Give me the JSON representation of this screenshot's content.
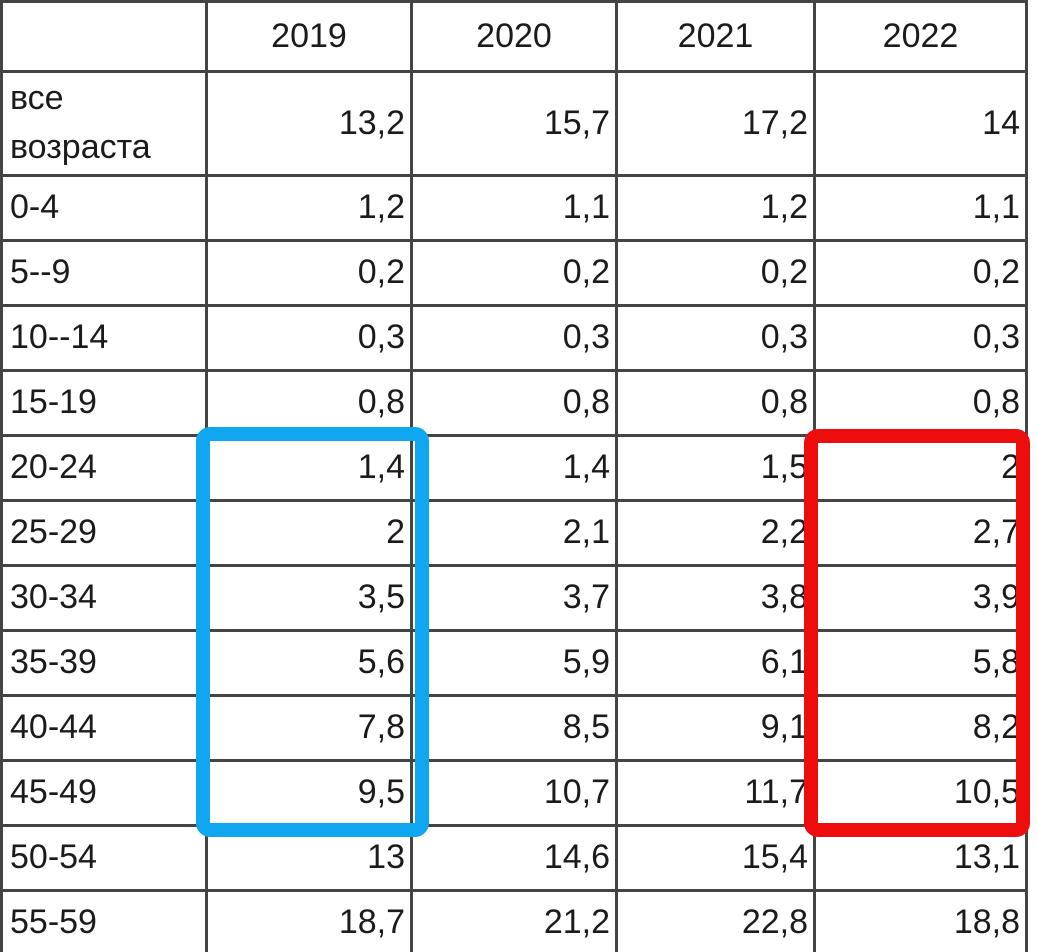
{
  "page": {
    "background_color": "#ffffff",
    "text_color": "#1b1b1b",
    "grid_border_color": "#444444"
  },
  "chart_data": {
    "type": "table",
    "columns": [
      "",
      "2019",
      "2020",
      "2021",
      "2022"
    ],
    "rows": [
      {
        "label": "все возраста",
        "values": [
          "13,2",
          "15,7",
          "17,2",
          "14"
        ]
      },
      {
        "label": "0-4",
        "values": [
          "1,2",
          "1,1",
          "1,2",
          "1,1"
        ]
      },
      {
        "label": "5--9",
        "values": [
          "0,2",
          "0,2",
          "0,2",
          "0,2"
        ]
      },
      {
        "label": "10--14",
        "values": [
          "0,3",
          "0,3",
          "0,3",
          "0,3"
        ]
      },
      {
        "label": "15-19",
        "values": [
          "0,8",
          "0,8",
          "0,8",
          "0,8"
        ]
      },
      {
        "label": "20-24",
        "values": [
          "1,4",
          "1,4",
          "1,5",
          "2"
        ]
      },
      {
        "label": "25-29",
        "values": [
          "2",
          "2,1",
          "2,2",
          "2,7"
        ]
      },
      {
        "label": "30-34",
        "values": [
          "3,5",
          "3,7",
          "3,8",
          "3,9"
        ]
      },
      {
        "label": "35-39",
        "values": [
          "5,6",
          "5,9",
          "6,1",
          "5,8"
        ]
      },
      {
        "label": "40-44",
        "values": [
          "7,8",
          "8,5",
          "9,1",
          "8,2"
        ]
      },
      {
        "label": "45-49",
        "values": [
          "9,5",
          "10,7",
          "11,7",
          "10,5"
        ]
      },
      {
        "label": "50-54",
        "values": [
          "13",
          "14,6",
          "15,4",
          "13,1"
        ]
      },
      {
        "label": "55-59",
        "values": [
          "18,7",
          "21,2",
          "22,8",
          "18,8"
        ]
      }
    ]
  },
  "highlights": [
    {
      "name": "blue-highlight-rectangle",
      "color": "#10A6F0",
      "column": "2019",
      "row_start": "20-24",
      "row_end": "45-49"
    },
    {
      "name": "red-highlight-rectangle",
      "color": "#EE0D0D",
      "column": "2022",
      "row_start": "20-24",
      "row_end": "45-49"
    }
  ]
}
